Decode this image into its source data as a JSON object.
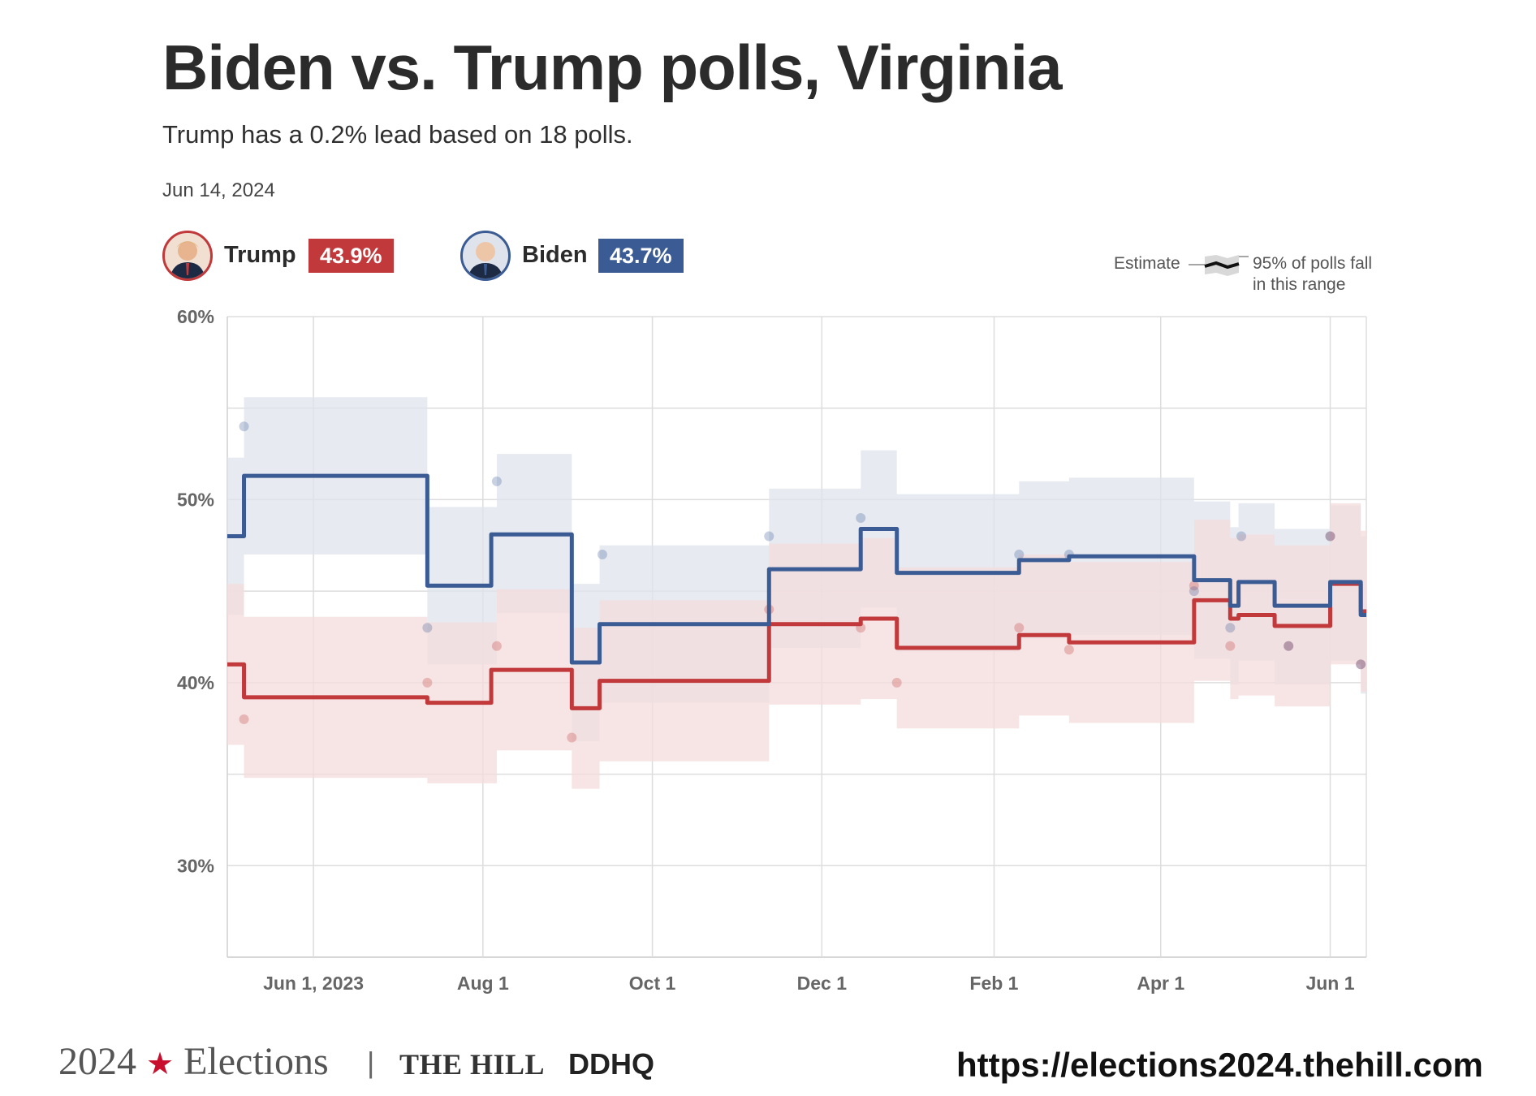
{
  "header": {
    "title": "Biden vs. Trump polls, Virginia",
    "subtitle": "Trump has a 0.2% lead based on 18 polls.",
    "date": "Jun 14, 2024"
  },
  "candidates": [
    {
      "name": "Trump",
      "value_label": "43.9%",
      "color": "#c1393b"
    },
    {
      "name": "Biden",
      "value_label": "43.7%",
      "color": "#3a5b93"
    }
  ],
  "legend": {
    "estimate_label": "Estimate",
    "range_label_line1": "95% of polls fall",
    "range_label_line2": "in this range"
  },
  "footer": {
    "year": "2024",
    "elections": "Elections",
    "separator": "|",
    "publisher": "THE HILL",
    "partner": "DDHQ",
    "url": "https://elections2024.thehill.com"
  },
  "colors": {
    "trump": "#c1393b",
    "biden": "#3a5b93",
    "trump_band": "#f4dcdc",
    "biden_band": "#dfe4ec",
    "grid": "#dddddd"
  },
  "chart_data": {
    "type": "line",
    "title": "Biden vs. Trump polls, Virginia",
    "xlabel": "",
    "ylabel": "",
    "ylim": [
      25,
      60
    ],
    "xlim": [
      "2023-05-01",
      "2024-06-14"
    ],
    "y_ticks": [
      {
        "value": 30,
        "label": "30%"
      },
      {
        "value": 40,
        "label": "40%"
      },
      {
        "value": 50,
        "label": "50%"
      },
      {
        "value": 60,
        "label": "60%"
      }
    ],
    "x_ticks": [
      {
        "date": "2023-06-01",
        "label": "Jun 1, 2023"
      },
      {
        "date": "2023-08-01",
        "label": "Aug 1"
      },
      {
        "date": "2023-10-01",
        "label": "Oct 1"
      },
      {
        "date": "2023-12-01",
        "label": "Dec 1"
      },
      {
        "date": "2024-02-01",
        "label": "Feb 1"
      },
      {
        "date": "2024-04-01",
        "label": "Apr 1"
      },
      {
        "date": "2024-06-01",
        "label": "Jun 1"
      }
    ],
    "series": [
      {
        "name": "Biden",
        "step_estimate": [
          [
            "2023-05-01",
            48.0
          ],
          [
            "2023-05-07",
            51.3
          ],
          [
            "2023-07-12",
            45.3
          ],
          [
            "2023-08-04",
            48.1
          ],
          [
            "2023-09-02",
            41.1
          ],
          [
            "2023-09-12",
            43.2
          ],
          [
            "2023-11-12",
            46.2
          ],
          [
            "2023-12-15",
            48.4
          ],
          [
            "2023-12-28",
            46.0
          ],
          [
            "2024-02-10",
            46.7
          ],
          [
            "2024-02-28",
            46.9
          ],
          [
            "2024-04-13",
            45.6
          ],
          [
            "2024-04-26",
            44.2
          ],
          [
            "2024-04-29",
            45.5
          ],
          [
            "2024-05-12",
            44.2
          ],
          [
            "2024-06-01",
            45.5
          ],
          [
            "2024-06-12",
            43.7
          ],
          [
            "2024-06-14",
            43.7
          ]
        ],
        "band_upper": [
          [
            "2023-05-01",
            52.3
          ],
          [
            "2023-05-07",
            55.6
          ],
          [
            "2023-07-12",
            49.6
          ],
          [
            "2023-08-06",
            52.5
          ],
          [
            "2023-09-02",
            45.4
          ],
          [
            "2023-09-12",
            47.5
          ],
          [
            "2023-11-12",
            50.6
          ],
          [
            "2023-12-15",
            52.7
          ],
          [
            "2023-12-28",
            50.3
          ],
          [
            "2024-02-10",
            51.0
          ],
          [
            "2024-02-28",
            51.2
          ],
          [
            "2024-04-13",
            49.9
          ],
          [
            "2024-04-26",
            48.5
          ],
          [
            "2024-04-29",
            49.8
          ],
          [
            "2024-05-12",
            48.4
          ],
          [
            "2024-06-01",
            49.7
          ],
          [
            "2024-06-12",
            48.0
          ],
          [
            "2024-06-14",
            48.0
          ]
        ],
        "band_lower": [
          [
            "2023-05-01",
            43.7
          ],
          [
            "2023-05-07",
            47.0
          ],
          [
            "2023-07-12",
            41.0
          ],
          [
            "2023-08-06",
            43.8
          ],
          [
            "2023-09-02",
            36.8
          ],
          [
            "2023-09-12",
            38.9
          ],
          [
            "2023-11-12",
            41.9
          ],
          [
            "2023-12-15",
            44.1
          ],
          [
            "2023-12-28",
            41.7
          ],
          [
            "2024-02-10",
            42.4
          ],
          [
            "2024-02-28",
            42.6
          ],
          [
            "2024-04-13",
            41.3
          ],
          [
            "2024-04-26",
            39.9
          ],
          [
            "2024-04-29",
            41.2
          ],
          [
            "2024-05-12",
            39.9
          ],
          [
            "2024-06-01",
            41.2
          ],
          [
            "2024-06-12",
            39.4
          ],
          [
            "2024-06-14",
            39.4
          ]
        ],
        "polls": [
          [
            "2023-05-07",
            54.0
          ],
          [
            "2023-07-12",
            43.0
          ],
          [
            "2023-08-06",
            51.0
          ],
          [
            "2023-09-13",
            47.0
          ],
          [
            "2023-11-12",
            48.0
          ],
          [
            "2023-12-15",
            49.0
          ],
          [
            "2024-02-10",
            47.0
          ],
          [
            "2024-02-28",
            47.0
          ],
          [
            "2024-04-13",
            45.0
          ],
          [
            "2024-04-26",
            43.0
          ],
          [
            "2024-04-30",
            48.0
          ],
          [
            "2024-05-17",
            42.0
          ],
          [
            "2024-06-01",
            48.0
          ],
          [
            "2024-06-12",
            41.0
          ]
        ]
      },
      {
        "name": "Trump",
        "step_estimate": [
          [
            "2023-05-01",
            41.0
          ],
          [
            "2023-05-07",
            39.2
          ],
          [
            "2023-07-12",
            38.9
          ],
          [
            "2023-08-04",
            40.7
          ],
          [
            "2023-09-02",
            38.6
          ],
          [
            "2023-09-12",
            40.1
          ],
          [
            "2023-11-12",
            43.2
          ],
          [
            "2023-12-15",
            43.5
          ],
          [
            "2023-12-28",
            41.9
          ],
          [
            "2024-02-10",
            42.6
          ],
          [
            "2024-02-28",
            42.2
          ],
          [
            "2024-04-13",
            44.5
          ],
          [
            "2024-04-26",
            43.5
          ],
          [
            "2024-04-29",
            43.7
          ],
          [
            "2024-05-12",
            43.1
          ],
          [
            "2024-06-01",
            45.4
          ],
          [
            "2024-06-12",
            43.9
          ],
          [
            "2024-06-14",
            43.9
          ]
        ],
        "band_upper": [
          [
            "2023-05-01",
            45.4
          ],
          [
            "2023-05-07",
            43.6
          ],
          [
            "2023-07-12",
            43.3
          ],
          [
            "2023-08-06",
            45.1
          ],
          [
            "2023-09-02",
            43.0
          ],
          [
            "2023-09-12",
            44.5
          ],
          [
            "2023-11-12",
            47.6
          ],
          [
            "2023-12-15",
            47.9
          ],
          [
            "2023-12-28",
            46.3
          ],
          [
            "2024-02-10",
            47.0
          ],
          [
            "2024-02-28",
            46.6
          ],
          [
            "2024-04-13",
            48.9
          ],
          [
            "2024-04-26",
            47.9
          ],
          [
            "2024-04-29",
            48.1
          ],
          [
            "2024-05-12",
            47.5
          ],
          [
            "2024-06-01",
            49.8
          ],
          [
            "2024-06-12",
            48.3
          ],
          [
            "2024-06-14",
            48.3
          ]
        ],
        "band_lower": [
          [
            "2023-05-01",
            36.6
          ],
          [
            "2023-05-07",
            34.8
          ],
          [
            "2023-07-12",
            34.5
          ],
          [
            "2023-08-06",
            36.3
          ],
          [
            "2023-09-02",
            34.2
          ],
          [
            "2023-09-12",
            35.7
          ],
          [
            "2023-11-12",
            38.8
          ],
          [
            "2023-12-15",
            39.1
          ],
          [
            "2023-12-28",
            37.5
          ],
          [
            "2024-02-10",
            38.2
          ],
          [
            "2024-02-28",
            37.8
          ],
          [
            "2024-04-13",
            40.1
          ],
          [
            "2024-04-26",
            39.1
          ],
          [
            "2024-04-29",
            39.3
          ],
          [
            "2024-05-12",
            38.7
          ],
          [
            "2024-06-01",
            41.0
          ],
          [
            "2024-06-12",
            39.5
          ],
          [
            "2024-06-14",
            39.5
          ]
        ],
        "polls": [
          [
            "2023-05-07",
            38.0
          ],
          [
            "2023-07-12",
            40.0
          ],
          [
            "2023-08-06",
            42.0
          ],
          [
            "2023-09-02",
            37.0
          ],
          [
            "2023-11-12",
            44.0
          ],
          [
            "2023-12-15",
            43.0
          ],
          [
            "2023-12-28",
            40.0
          ],
          [
            "2024-02-10",
            43.0
          ],
          [
            "2024-02-28",
            41.8
          ],
          [
            "2024-04-13",
            45.3
          ],
          [
            "2024-04-26",
            42.0
          ],
          [
            "2024-05-17",
            42.0
          ],
          [
            "2024-06-01",
            48.0
          ],
          [
            "2024-06-12",
            41.0
          ]
        ]
      }
    ]
  }
}
